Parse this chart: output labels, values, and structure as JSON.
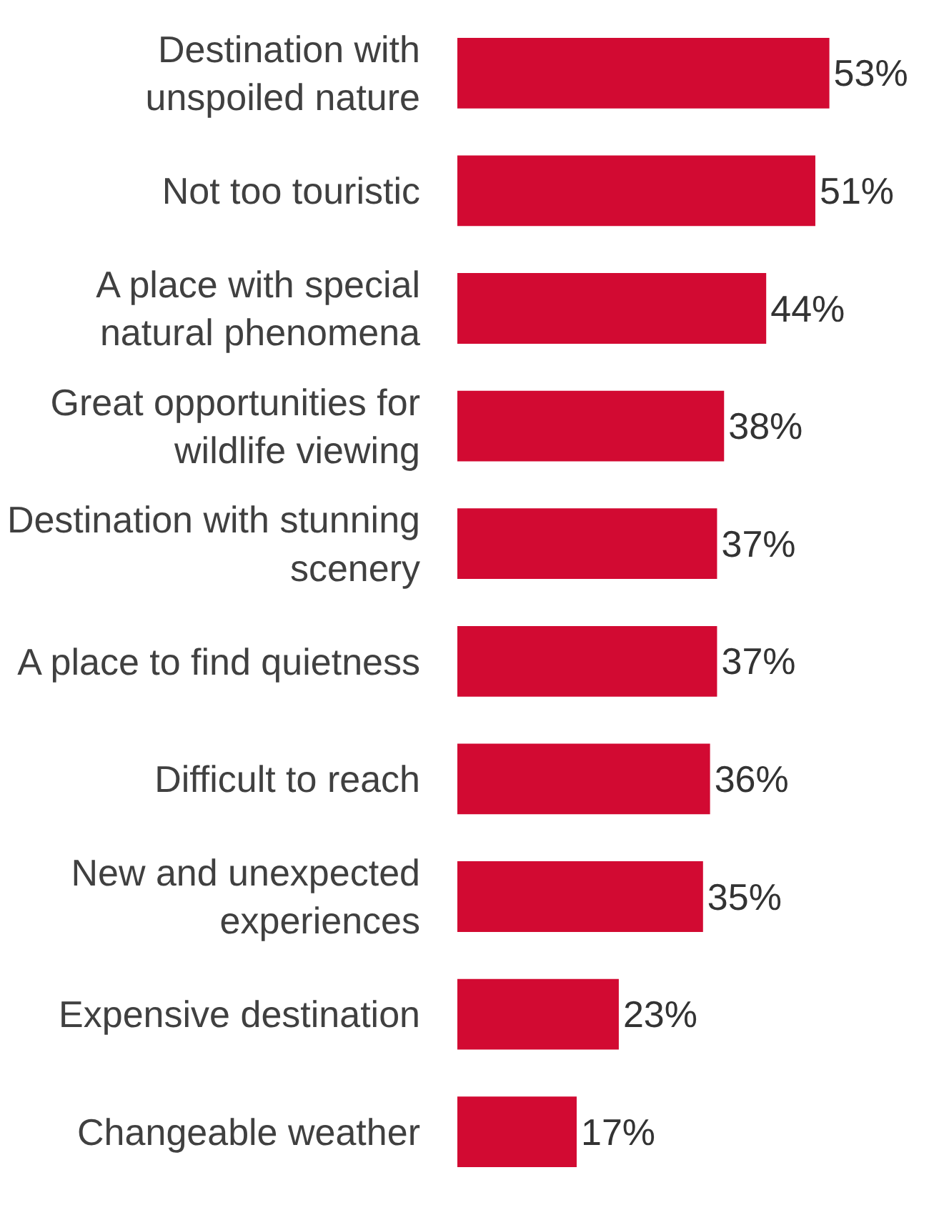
{
  "chart_data": {
    "type": "bar",
    "orientation": "horizontal",
    "color": "#d20a32",
    "categories": [
      "Destination with unspoiled nature",
      "Not too touristic",
      "A place with special natural phenomena",
      "Great opportunities for wildlife viewing",
      "Destination with stunning scenery",
      "A place to find quietness",
      "Difficult to reach",
      "New and unexpected experiences",
      "Expensive destination",
      "Changeable weather"
    ],
    "values": [
      53,
      51,
      44,
      38,
      37,
      37,
      36,
      35,
      23,
      17
    ],
    "value_labels": [
      "53%",
      "51%",
      "44%",
      "38%",
      "37%",
      "37%",
      "36%",
      "35%",
      "23%",
      "17%"
    ]
  }
}
